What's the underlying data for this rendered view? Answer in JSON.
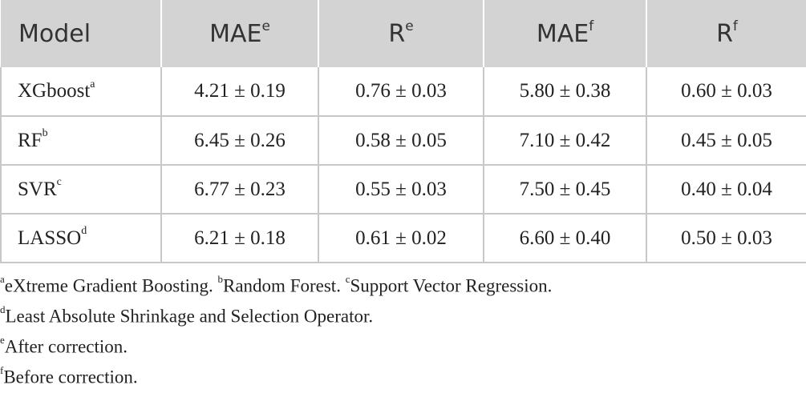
{
  "table": {
    "headers": [
      {
        "text": "Model",
        "sup": ""
      },
      {
        "text": "MAE",
        "sup": "e"
      },
      {
        "text": "R",
        "sup": "e"
      },
      {
        "text": "MAE",
        "sup": "f"
      },
      {
        "text": "R",
        "sup": "f"
      }
    ],
    "rows": [
      {
        "model": "XGboost",
        "sup": "a",
        "cells": [
          "4.21 ± 0.19",
          "0.76 ± 0.03",
          "5.80 ± 0.38",
          "0.60 ± 0.03"
        ]
      },
      {
        "model": "RF",
        "sup": "b",
        "cells": [
          "6.45 ± 0.26",
          "0.58 ± 0.05",
          "7.10 ± 0.42",
          "0.45 ± 0.05"
        ]
      },
      {
        "model": "SVR",
        "sup": "c",
        "cells": [
          "6.77 ± 0.23",
          "0.55 ± 0.03",
          "7.50 ± 0.45",
          "0.40 ± 0.04"
        ]
      },
      {
        "model": "LASSO",
        "sup": "d",
        "cells": [
          "6.21 ± 0.18",
          "0.61 ± 0.02",
          "6.60 ± 0.40",
          "0.50 ± 0.03"
        ]
      }
    ]
  },
  "footnotes": {
    "line1": {
      "a_mark": "a",
      "a_text": "eXtreme Gradient Boosting. ",
      "b_mark": "b",
      "b_text": "Random Forest. ",
      "c_mark": "c",
      "c_text": "Support Vector Regression."
    },
    "line2": {
      "mark": "d",
      "text": "Least Absolute Shrinkage and Selection Operator."
    },
    "line3": {
      "mark": "e",
      "text": "After correction."
    },
    "line4": {
      "mark": "f",
      "text": "Before correction."
    }
  }
}
